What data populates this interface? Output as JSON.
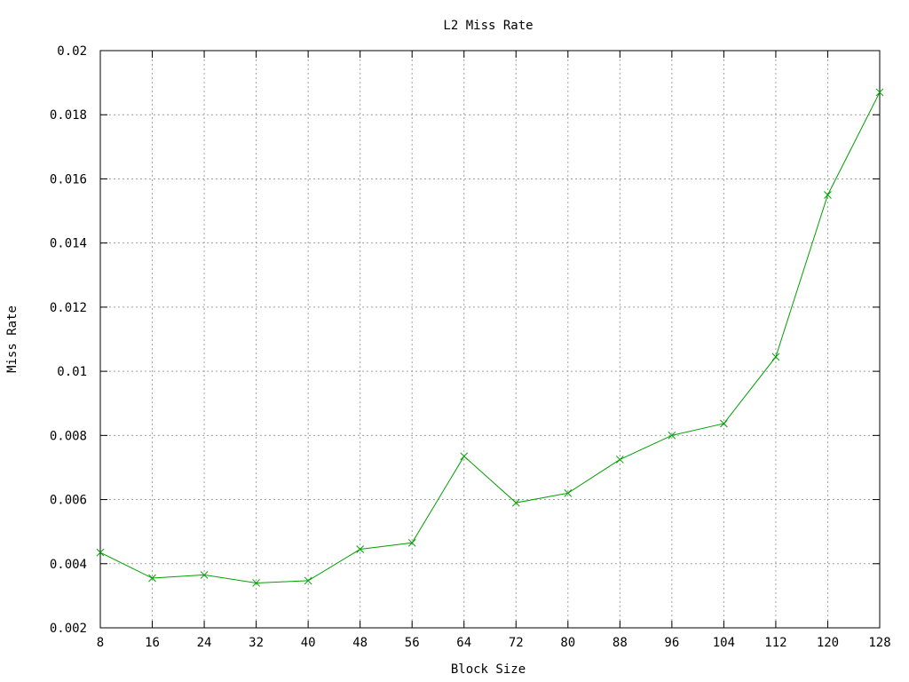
{
  "chart_data": {
    "type": "line",
    "title": "L2 Miss Rate",
    "xlabel": "Block Size",
    "ylabel": "Miss Rate",
    "x": [
      8,
      16,
      24,
      32,
      40,
      48,
      56,
      64,
      72,
      80,
      88,
      96,
      104,
      112,
      120,
      128
    ],
    "xticks": [
      "8",
      "16",
      "24",
      "32",
      "40",
      "48",
      "56",
      "64",
      "72",
      "80",
      "88",
      "96",
      "104",
      "112",
      "120",
      "128"
    ],
    "yticks": [
      "0.002",
      "0.004",
      "0.006",
      "0.008",
      "0.01",
      "0.012",
      "0.014",
      "0.016",
      "0.018",
      "0.02"
    ],
    "xlim": [
      8,
      128
    ],
    "ylim": [
      0.002,
      0.02
    ],
    "grid": true,
    "series": [
      {
        "color": "#00a000",
        "marker": "x",
        "values": [
          0.00435,
          0.00355,
          0.00365,
          0.0034,
          0.00347,
          0.00445,
          0.00465,
          0.00735,
          0.0059,
          0.0062,
          0.00725,
          0.008,
          0.00837,
          0.01045,
          0.0155,
          0.0187
        ]
      }
    ]
  }
}
